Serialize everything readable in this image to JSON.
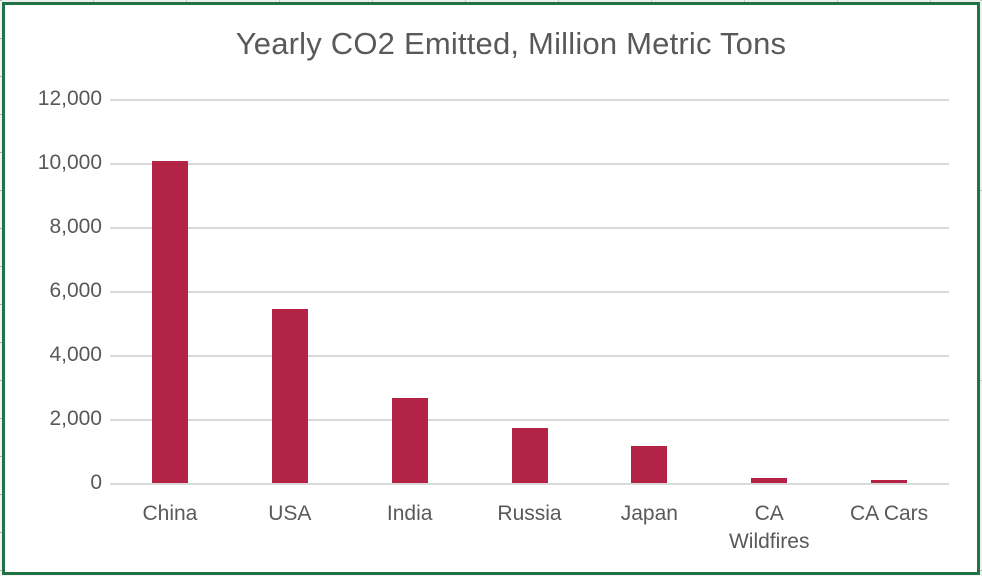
{
  "chart_data": {
    "type": "bar",
    "title": "Yearly CO2 Emitted, Million Metric Tons",
    "categories": [
      "China",
      "USA",
      "India",
      "Russia",
      "Japan",
      "CA Wildfires",
      "CA Cars"
    ],
    "values": [
      10060,
      5440,
      2650,
      1710,
      1160,
      150,
      80
    ],
    "xlabel": "",
    "ylabel": "",
    "ylim": [
      0,
      12000
    ],
    "ytick_step": 2000,
    "ytick_labels": [
      "0",
      "2,000",
      "4,000",
      "6,000",
      "8,000",
      "10,000",
      "12,000"
    ],
    "grid": true,
    "legend_position": "none",
    "bar_color": "#b22346",
    "grid_color": "#d9d9d9",
    "text_color": "#595959",
    "frame_color": "#217346"
  }
}
